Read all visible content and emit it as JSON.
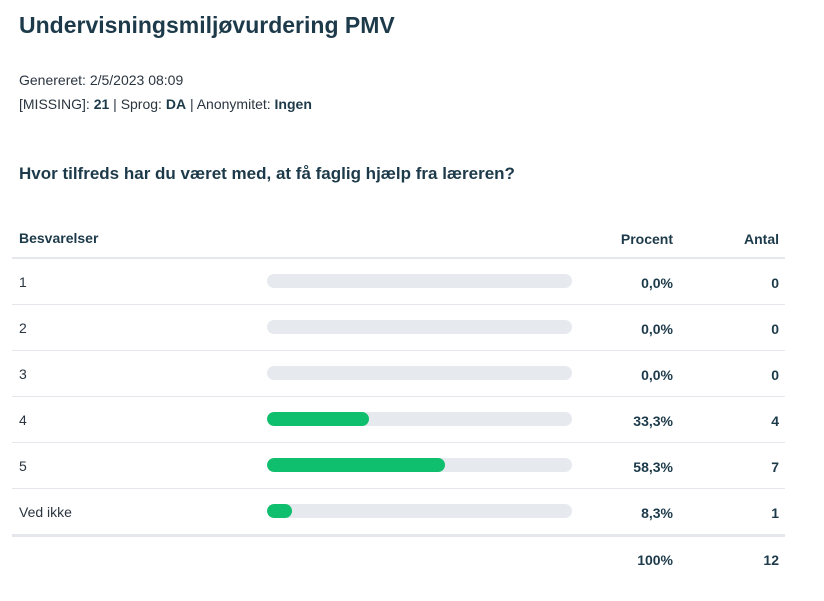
{
  "title": "Undervisningsmiljøvurdering PMV",
  "meta": {
    "generated_label": "Genereret:",
    "generated_value": "2/5/2023 08:09",
    "missing_label": "[MISSING]:",
    "missing_value": "21",
    "lang_label": "Sprog:",
    "lang_value": "DA",
    "anon_label": "Anonymitet:",
    "anon_value": "Ingen"
  },
  "question": "Hvor tilfreds har du været med, at få faglig hjælp fra læreren?",
  "table": {
    "col_answers": "Besvarelser",
    "col_percent": "Procent",
    "col_count": "Antal",
    "rows": [
      {
        "label": "1",
        "percent": "0,0%",
        "count": "0",
        "fraction": 0.0
      },
      {
        "label": "2",
        "percent": "0,0%",
        "count": "0",
        "fraction": 0.0
      },
      {
        "label": "3",
        "percent": "0,0%",
        "count": "0",
        "fraction": 0.0
      },
      {
        "label": "4",
        "percent": "33,3%",
        "count": "4",
        "fraction": 0.333
      },
      {
        "label": "5",
        "percent": "58,3%",
        "count": "7",
        "fraction": 0.583
      },
      {
        "label": "Ved ikke",
        "percent": "8,3%",
        "count": "1",
        "fraction": 0.083
      }
    ],
    "total_percent": "100%",
    "total_count": "12"
  },
  "colors": {
    "bar_fill": "#10bf6e",
    "bar_track": "#e6e9ed"
  }
}
